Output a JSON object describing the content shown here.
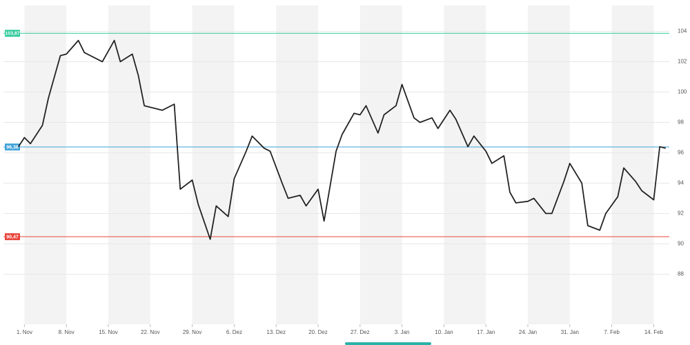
{
  "chart_data": {
    "type": "line",
    "x": [
      -1,
      0,
      1,
      3,
      4,
      6,
      7,
      9,
      10,
      13,
      15,
      16,
      18,
      19,
      20,
      23,
      25,
      26,
      28,
      29,
      31,
      32,
      34,
      35,
      37,
      38,
      40,
      41,
      43,
      44,
      46,
      47,
      49,
      50,
      52,
      53,
      55,
      56,
      57,
      59,
      60,
      62,
      63,
      65,
      66,
      68,
      69,
      71,
      72,
      74,
      75,
      77,
      78,
      80,
      81,
      82,
      84,
      85,
      87,
      88,
      90,
      91,
      93,
      94,
      96,
      97,
      99,
      100,
      102,
      103,
      105,
      106,
      107
    ],
    "series": [
      {
        "color": "#222222",
        "values": [
          96.4,
          97.0,
          96.6,
          97.8,
          99.6,
          102.4,
          102.5,
          103.4,
          102.6,
          102.0,
          103.4,
          102.0,
          102.5,
          101.1,
          99.1,
          98.8,
          99.2,
          93.6,
          94.2,
          92.6,
          90.3,
          92.5,
          91.8,
          94.3,
          96.1,
          97.1,
          96.3,
          96.1,
          94.0,
          93.0,
          93.2,
          92.5,
          93.6,
          91.5,
          96.1,
          97.2,
          98.6,
          98.5,
          99.1,
          97.3,
          98.5,
          99.1,
          100.5,
          98.3,
          98.0,
          98.3,
          97.6,
          98.8,
          98.2,
          96.4,
          97.1,
          96.1,
          95.3,
          95.8,
          93.4,
          92.7,
          92.8,
          93.0,
          92.0,
          92.0,
          94.1,
          95.3,
          94.0,
          91.2,
          90.9,
          92.0,
          93.1,
          95.0,
          94.1,
          93.5,
          92.9,
          96.4,
          96.3
        ]
      }
    ],
    "xlim": [
      -3.5,
      107.6
    ],
    "ylim": [
      84.7,
      105.7
    ],
    "xticks": [
      {
        "value": 0,
        "label": "1. Nov"
      },
      {
        "value": 7,
        "label": "8. Nov"
      },
      {
        "value": 14,
        "label": "15. Nov"
      },
      {
        "value": 21,
        "label": "22. Nov"
      },
      {
        "value": 28,
        "label": "29. Nov"
      },
      {
        "value": 35,
        "label": "6. Dez"
      },
      {
        "value": 42,
        "label": "13. Dez"
      },
      {
        "value": 49,
        "label": "20. Dez"
      },
      {
        "value": 56,
        "label": "27. Dez"
      },
      {
        "value": 63,
        "label": "3. Jan"
      },
      {
        "value": 70,
        "label": "10. Jan"
      },
      {
        "value": 77,
        "label": "17. Jan"
      },
      {
        "value": 84,
        "label": "24. Jan"
      },
      {
        "value": 91,
        "label": "31. Jan"
      },
      {
        "value": 98,
        "label": "7. Feb"
      },
      {
        "value": 105,
        "label": "14. Feb"
      }
    ],
    "yticks": [
      88,
      90,
      92,
      94,
      96,
      98,
      100,
      102,
      104
    ],
    "grid": true,
    "reference_lines": [
      {
        "value": 103.87,
        "label": "103,87",
        "color": "#2ec99a"
      },
      {
        "value": 96.38,
        "label": "96,38",
        "color": "#3fa2d8"
      },
      {
        "value": 90.47,
        "label": "90,47",
        "color": "#e8453c"
      }
    ]
  }
}
